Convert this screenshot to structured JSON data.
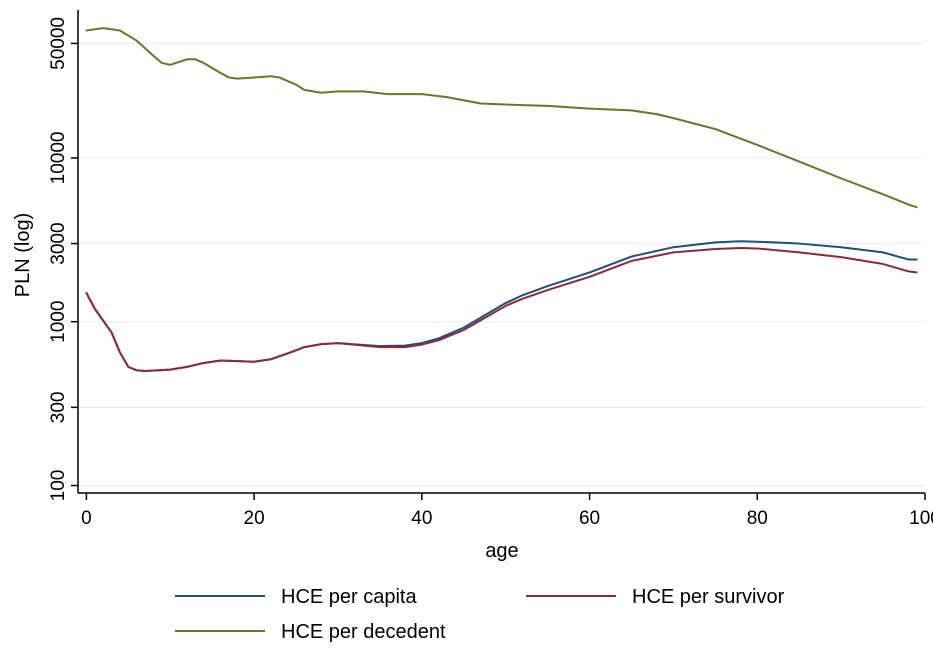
{
  "chart_data": {
    "type": "line",
    "title": "",
    "xlabel": "age",
    "ylabel": "PLN (log)",
    "y_scale": "log",
    "grid": true,
    "legend_position": "bottom",
    "xlim": [
      -1,
      100
    ],
    "ylim": [
      90,
      80000
    ],
    "x_ticks": [
      0,
      20,
      40,
      60,
      80,
      100
    ],
    "x_tick_labels": [
      "0",
      "20",
      "40",
      "60",
      "80",
      "100"
    ],
    "y_ticks": [
      100,
      300,
      1000,
      3000,
      10000,
      50000
    ],
    "y_tick_labels": [
      "100",
      "300",
      "1000",
      "3000",
      "10000",
      "50000"
    ],
    "series": [
      {
        "name": "HCE per capita",
        "color": "#1f4e79",
        "x": [
          0,
          1,
          3,
          4,
          5,
          6,
          7,
          10,
          12,
          14,
          16,
          20,
          22,
          24,
          26,
          28,
          30,
          35,
          38,
          40,
          42,
          45,
          50,
          52,
          55,
          60,
          65,
          70,
          75,
          78,
          80,
          85,
          90,
          95,
          98,
          99
        ],
        "y": [
          1500,
          1200,
          860,
          650,
          530,
          505,
          500,
          510,
          530,
          560,
          580,
          570,
          590,
          640,
          700,
          730,
          740,
          710,
          715,
          740,
          790,
          920,
          1300,
          1450,
          1650,
          2000,
          2500,
          2850,
          3050,
          3100,
          3080,
          3000,
          2850,
          2650,
          2400,
          2400
        ]
      },
      {
        "name": "HCE per survivor",
        "color": "#8b2a3a",
        "x": [
          0,
          1,
          3,
          4,
          5,
          6,
          7,
          10,
          12,
          14,
          16,
          20,
          22,
          24,
          26,
          28,
          30,
          35,
          38,
          40,
          42,
          45,
          50,
          52,
          55,
          60,
          65,
          70,
          75,
          78,
          80,
          85,
          90,
          95,
          98,
          99
        ],
        "y": [
          1500,
          1200,
          860,
          650,
          530,
          505,
          500,
          510,
          530,
          560,
          580,
          570,
          590,
          640,
          700,
          730,
          740,
          700,
          700,
          725,
          770,
          890,
          1250,
          1380,
          1560,
          1880,
          2350,
          2650,
          2780,
          2820,
          2800,
          2650,
          2480,
          2250,
          2030,
          2000
        ]
      },
      {
        "name": "HCE per decedent",
        "color": "#5a7d2a",
        "x": [
          0,
          2,
          4,
          6,
          8,
          9,
          10,
          12,
          13,
          14,
          16,
          17,
          18,
          20,
          22,
          23,
          25,
          26,
          28,
          30,
          33,
          36,
          40,
          43,
          47,
          52,
          55,
          60,
          65,
          68,
          70,
          75,
          80,
          85,
          90,
          95,
          98,
          99
        ],
        "y": [
          60000,
          62000,
          60000,
          52000,
          42000,
          38000,
          37000,
          40000,
          40000,
          38000,
          33000,
          31000,
          30500,
          31000,
          31500,
          31000,
          28000,
          26000,
          25000,
          25500,
          25500,
          24500,
          24500,
          23500,
          21500,
          21000,
          20800,
          20000,
          19500,
          18500,
          17500,
          15000,
          12000,
          9500,
          7500,
          6000,
          5200,
          5000
        ]
      }
    ]
  }
}
